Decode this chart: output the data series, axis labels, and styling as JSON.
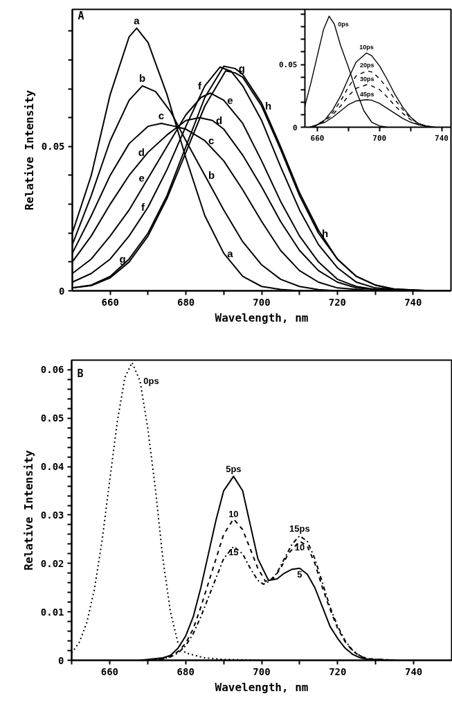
{
  "chart_data": [
    {
      "type": "line",
      "xlabel": "Wavelength, nm",
      "ylabel": "Relative Intensity",
      "xlim": [
        650,
        750
      ],
      "ylim": [
        0,
        0.0975
      ],
      "xticks": [
        660,
        {
          "value": 670,
          "label": null
        },
        680,
        {
          "value": 690,
          "label": null
        },
        700,
        {
          "value": 710,
          "label": null
        },
        720,
        {
          "value": 730,
          "label": null
        },
        740
      ],
      "yticks": [
        0,
        {
          "value": 0.01,
          "label": null
        },
        {
          "value": 0.02,
          "label": null
        },
        {
          "value": 0.03,
          "label": null
        },
        {
          "value": 0.04,
          "label": null
        },
        0.05,
        {
          "value": 0.06,
          "label": null
        },
        {
          "value": 0.07,
          "label": null
        },
        {
          "value": 0.08,
          "label": null
        },
        {
          "value": 0.09,
          "label": null
        }
      ],
      "series": [
        {
          "color": "#000000",
          "line_style": "solid",
          "x": [
            650,
            655,
            660,
            665,
            667,
            670,
            675,
            680,
            685,
            690,
            695,
            700,
            705,
            710,
            720,
            750
          ],
          "values": [
            0.02,
            0.04,
            0.068,
            0.088,
            0.091,
            0.086,
            0.068,
            0.046,
            0.026,
            0.013,
            0.005,
            0.0015,
            0.0005,
            0,
            0,
            0
          ]
        },
        {
          "color": "#000000",
          "line_style": "solid",
          "x": [
            650,
            655,
            660,
            665,
            668.5,
            672,
            676,
            680,
            685,
            690,
            695,
            700,
            705,
            710,
            715,
            720,
            750
          ],
          "values": [
            0.016,
            0.033,
            0.052,
            0.066,
            0.071,
            0.069,
            0.062,
            0.052,
            0.04,
            0.028,
            0.017,
            0.009,
            0.004,
            0.0015,
            0.0004,
            0,
            0
          ]
        },
        {
          "color": "#000000",
          "line_style": "solid",
          "x": [
            650,
            655,
            660,
            665,
            670,
            673.5,
            677,
            680,
            685,
            690,
            695,
            700,
            705,
            710,
            715,
            720,
            730,
            750
          ],
          "values": [
            0.013,
            0.026,
            0.04,
            0.051,
            0.057,
            0.058,
            0.057,
            0.056,
            0.052,
            0.045,
            0.035,
            0.024,
            0.014,
            0.007,
            0.003,
            0.001,
            0,
            0
          ]
        },
        {
          "color": "#000000",
          "line_style": "solid",
          "x": [
            650,
            655,
            660,
            665,
            670,
            675,
            680,
            683.6,
            687,
            690,
            695,
            700,
            705,
            710,
            715,
            720,
            725,
            735,
            750
          ],
          "values": [
            0.01,
            0.019,
            0.03,
            0.04,
            0.048,
            0.054,
            0.059,
            0.06,
            0.059,
            0.056,
            0.047,
            0.036,
            0.024,
            0.014,
            0.007,
            0.003,
            0.001,
            0,
            0
          ]
        },
        {
          "color": "#000000",
          "line_style": "solid",
          "x": [
            650,
            655,
            660,
            665,
            670,
            675,
            680,
            684,
            686.5,
            690,
            695,
            700,
            705,
            710,
            715,
            720,
            725,
            730,
            740,
            750
          ],
          "values": [
            0.006,
            0.011,
            0.019,
            0.028,
            0.039,
            0.05,
            0.061,
            0.067,
            0.0685,
            0.066,
            0.058,
            0.045,
            0.031,
            0.019,
            0.01,
            0.004,
            0.0015,
            0.0005,
            0,
            0
          ]
        },
        {
          "color": "#000000",
          "line_style": "solid",
          "x": [
            650,
            655,
            660,
            665,
            670,
            675,
            680,
            685,
            689,
            692,
            695,
            700,
            705,
            710,
            715,
            720,
            725,
            730,
            740,
            750
          ],
          "values": [
            0.003,
            0.006,
            0.011,
            0.019,
            0.029,
            0.042,
            0.057,
            0.071,
            0.0775,
            0.076,
            0.071,
            0.059,
            0.043,
            0.028,
            0.016,
            0.008,
            0.003,
            0.001,
            0,
            0
          ]
        },
        {
          "color": "#000000",
          "line_style": "solid",
          "x": [
            650,
            655,
            660,
            665,
            670,
            675,
            680,
            685,
            690,
            693,
            695,
            700,
            705,
            710,
            715,
            720,
            725,
            730,
            735,
            745,
            750
          ],
          "values": [
            0.001,
            0.002,
            0.005,
            0.011,
            0.02,
            0.033,
            0.05,
            0.067,
            0.0778,
            0.077,
            0.075,
            0.065,
            0.05,
            0.034,
            0.021,
            0.011,
            0.005,
            0.002,
            0.0006,
            0,
            0
          ]
        },
        {
          "color": "#000000",
          "line_style": "solid",
          "x": [
            650,
            655,
            660,
            665,
            670,
            675,
            680,
            685,
            690.5,
            693,
            695,
            700,
            705,
            710,
            715,
            720,
            725,
            730,
            735,
            745,
            750
          ],
          "values": [
            0.001,
            0.0018,
            0.0045,
            0.01,
            0.019,
            0.032,
            0.048,
            0.064,
            0.0762,
            0.0755,
            0.074,
            0.064,
            0.049,
            0.033,
            0.02,
            0.011,
            0.005,
            0.002,
            0.0006,
            0,
            0
          ]
        }
      ],
      "annotations": [
        "A",
        {
          "text": "a",
          "x": 667,
          "y": 0.091
        },
        {
          "text": "b",
          "x": 668.5,
          "y": 0.071
        },
        {
          "text": "c",
          "x": 673.5,
          "y": 0.058
        },
        {
          "text": "d",
          "x": 670,
          "y": 0.048
        },
        {
          "text": "e",
          "x": 670,
          "y": 0.039
        },
        {
          "text": "f",
          "x": 670,
          "y": 0.029
        },
        {
          "text": "g",
          "x": 665,
          "y": 0.011
        },
        {
          "text": "h",
          "x": 715,
          "y": 0.02
        },
        {
          "text": "a",
          "x": 690,
          "y": 0.013
        },
        {
          "text": "b",
          "x": 685,
          "y": 0.04
        },
        {
          "text": "c",
          "x": 685,
          "y": 0.052
        },
        {
          "text": "d",
          "x": 687,
          "y": 0.059
        },
        {
          "text": "e",
          "x": 690,
          "y": 0.066
        },
        {
          "text": "h",
          "x": 700,
          "y": 0.064
        },
        {
          "text": "g",
          "x": 693,
          "y": 0.077
        },
        {
          "text": "f",
          "x": 685,
          "y": 0.071
        }
      ]
    },
    {
      "type": "line",
      "xlim": [
        652,
        746
      ],
      "ylim": [
        0,
        0.094
      ],
      "xticks": [
        660,
        {
          "value": 680,
          "label": null
        },
        700,
        {
          "value": 720,
          "label": null
        },
        740
      ],
      "yticks": [
        0,
        {
          "value": 0.01,
          "label": null
        },
        {
          "value": 0.02,
          "label": null
        },
        {
          "value": 0.03,
          "label": null
        },
        {
          "value": 0.04,
          "label": null
        },
        0.05,
        {
          "value": 0.06,
          "label": null
        },
        {
          "value": 0.07,
          "label": null
        },
        {
          "value": 0.08,
          "label": null
        },
        {
          "value": 0.09,
          "label": null
        }
      ],
      "series": [
        {
          "color": "#000000",
          "line_style": "solid",
          "x": [
            652,
            656,
            660,
            664,
            667.6,
            671,
            675,
            680,
            685,
            690,
            695,
            700,
            705
          ],
          "values": [
            0.017,
            0.036,
            0.057,
            0.078,
            0.0886,
            0.082,
            0.065,
            0.048,
            0.029,
            0.013,
            0.004,
            0.001,
            0
          ]
        },
        {
          "color": "#000000",
          "line_style": "solid",
          "x": [
            655,
            660,
            665,
            670,
            675,
            680,
            685,
            691.6,
            695,
            700,
            705,
            710,
            715,
            720,
            725,
            730,
            736
          ],
          "values": [
            0,
            0.002,
            0.006,
            0.014,
            0.025,
            0.039,
            0.052,
            0.0592,
            0.057,
            0.049,
            0.038,
            0.026,
            0.016,
            0.008,
            0.003,
            0.001,
            0
          ]
        },
        {
          "color": "#000000",
          "line_style": "dashed",
          "x": [
            656,
            660,
            665,
            670,
            675,
            680,
            685,
            692,
            695,
            700,
            705,
            710,
            715,
            720,
            725,
            730,
            735
          ],
          "values": [
            0,
            0.002,
            0.006,
            0.012,
            0.021,
            0.032,
            0.041,
            0.045,
            0.044,
            0.039,
            0.031,
            0.022,
            0.014,
            0.007,
            0.003,
            0.001,
            0
          ]
        },
        {
          "color": "#000000",
          "line_style": "dashed",
          "x": [
            657,
            660,
            665,
            670,
            675,
            680,
            685,
            692,
            695,
            700,
            705,
            710,
            715,
            720,
            725,
            730,
            734
          ],
          "values": [
            0,
            0.002,
            0.005,
            0.01,
            0.017,
            0.025,
            0.031,
            0.034,
            0.033,
            0.03,
            0.024,
            0.017,
            0.011,
            0.006,
            0.002,
            0.001,
            0
          ]
        },
        {
          "color": "#000000",
          "line_style": "solid",
          "x": [
            658,
            660,
            665,
            670,
            675,
            680,
            685,
            692,
            695,
            700,
            705,
            710,
            715,
            720,
            725,
            730,
            733
          ],
          "values": [
            0,
            0.002,
            0.004,
            0.008,
            0.013,
            0.018,
            0.021,
            0.022,
            0.0215,
            0.019,
            0.015,
            0.011,
            0.007,
            0.004,
            0.002,
            0.0005,
            0
          ]
        }
      ],
      "annotations": [
        {
          "text": "0ps",
          "x": 671,
          "y": 0.082
        },
        {
          "text": "10ps",
          "x": 691.6,
          "y": 0.0592
        },
        {
          "text": "20ps",
          "x": 692,
          "y": 0.045
        },
        {
          "text": "30ps",
          "x": 692,
          "y": 0.034
        },
        {
          "text": "45ps",
          "x": 692,
          "y": 0.022
        }
      ]
    },
    {
      "type": "line",
      "xlabel": "Wavelength, nm",
      "ylabel": "Relative Intensity",
      "xlim": [
        650,
        750
      ],
      "ylim": [
        0,
        0.062
      ],
      "xticks": [
        {
          "value": 650,
          "label": null
        },
        660,
        {
          "value": 670,
          "label": null
        },
        680,
        {
          "value": 690,
          "label": null
        },
        700,
        {
          "value": 710,
          "label": null
        },
        720,
        {
          "value": 730,
          "label": null
        },
        740
      ],
      "yticks": [
        0,
        {
          "value": 0.002,
          "label": null
        },
        {
          "value": 0.004,
          "label": null
        },
        {
          "value": 0.006,
          "label": null
        },
        {
          "value": 0.008,
          "label": null
        },
        0.01,
        {
          "value": 0.012,
          "label": null
        },
        {
          "value": 0.014,
          "label": null
        },
        {
          "value": 0.016,
          "label": null
        },
        {
          "value": 0.018,
          "label": null
        },
        0.02,
        {
          "value": 0.022,
          "label": null
        },
        {
          "value": 0.024,
          "label": null
        },
        {
          "value": 0.026,
          "label": null
        },
        {
          "value": 0.028,
          "label": null
        },
        0.03,
        {
          "value": 0.032,
          "label": null
        },
        {
          "value": 0.034,
          "label": null
        },
        {
          "value": 0.036,
          "label": null
        },
        {
          "value": 0.038,
          "label": null
        },
        0.04,
        {
          "value": 0.042,
          "label": null
        },
        {
          "value": 0.044,
          "label": null
        },
        {
          "value": 0.046,
          "label": null
        },
        {
          "value": 0.048,
          "label": null
        },
        0.05,
        {
          "value": 0.052,
          "label": null
        },
        {
          "value": 0.054,
          "label": null
        },
        {
          "value": 0.056,
          "label": null
        },
        {
          "value": 0.058,
          "label": null
        },
        0.06
      ],
      "series": [
        {
          "color": "#000000",
          "line_style": "dotted",
          "x": [
            650,
            652,
            654,
            656,
            658,
            660,
            662,
            664,
            665.9,
            668,
            670,
            672,
            674,
            676,
            678,
            680,
            685,
            690,
            700
          ],
          "values": [
            0.0015,
            0.0037,
            0.0078,
            0.0147,
            0.0247,
            0.037,
            0.0492,
            0.0584,
            0.0615,
            0.0577,
            0.0481,
            0.0357,
            0.021,
            0.01,
            0.0035,
            0.0015,
            0.0005,
            0.0002,
            0
          ]
        },
        {
          "color": "#000000",
          "line_style": "solid",
          "x": [
            668,
            674,
            676,
            678,
            680,
            682,
            684,
            686,
            688,
            690,
            692.6,
            695,
            697,
            699,
            701.8,
            704,
            706,
            708,
            710,
            712,
            714,
            716,
            718,
            720,
            722,
            724,
            726,
            728,
            734
          ],
          "values": [
            0,
            0.0005,
            0.001,
            0.0025,
            0.005,
            0.009,
            0.015,
            0.022,
            0.029,
            0.035,
            0.038,
            0.035,
            0.028,
            0.021,
            0.0165,
            0.0168,
            0.018,
            0.0188,
            0.019,
            0.0178,
            0.015,
            0.011,
            0.007,
            0.0045,
            0.0025,
            0.0012,
            0.0005,
            0.0002,
            0
          ]
        },
        {
          "color": "#000000",
          "line_style": "dashed",
          "x": [
            669,
            674,
            676,
            678,
            680,
            682,
            684,
            686,
            688,
            690,
            692.6,
            695,
            697,
            699,
            701,
            703,
            705,
            707,
            710,
            712,
            714,
            716,
            718,
            720,
            722,
            724,
            726,
            728,
            735
          ],
          "values": [
            0,
            0.0003,
            0.0008,
            0.0018,
            0.0035,
            0.0065,
            0.011,
            0.016,
            0.021,
            0.026,
            0.0292,
            0.027,
            0.023,
            0.019,
            0.0163,
            0.0168,
            0.019,
            0.022,
            0.0246,
            0.0236,
            0.02,
            0.015,
            0.0105,
            0.0066,
            0.0038,
            0.0019,
            0.0008,
            0.0003,
            0
          ]
        },
        {
          "color": "#000000",
          "line_style": "dashdot",
          "x": [
            670,
            674,
            676,
            678,
            680,
            682,
            684,
            686,
            688,
            690,
            692.6,
            695,
            697,
            699,
            700.5,
            702,
            704,
            706,
            708,
            710,
            712,
            714,
            716,
            718,
            720,
            722,
            724,
            726,
            728,
            736
          ],
          "values": [
            0,
            0.0003,
            0.0007,
            0.0015,
            0.003,
            0.0055,
            0.009,
            0.013,
            0.017,
            0.021,
            0.0235,
            0.022,
            0.019,
            0.0165,
            0.0157,
            0.0163,
            0.018,
            0.021,
            0.024,
            0.0257,
            0.0246,
            0.021,
            0.016,
            0.011,
            0.007,
            0.004,
            0.002,
            0.0009,
            0.0003,
            0
          ]
        }
      ],
      "annotations": [
        "B",
        {
          "text": "0ps",
          "x": 668,
          "y": 0.0577
        },
        {
          "text": "5ps",
          "x": 692.6,
          "y": 0.038
        },
        {
          "text": "10",
          "x": 692.6,
          "y": 0.0292
        },
        {
          "text": "15",
          "x": 692.6,
          "y": 0.0235
        },
        {
          "text": "15ps",
          "x": 710,
          "y": 0.0257
        },
        {
          "text": "10",
          "x": 710,
          "y": 0.0246
        },
        {
          "text": "5",
          "x": 710,
          "y": 0.019
        }
      ]
    }
  ]
}
